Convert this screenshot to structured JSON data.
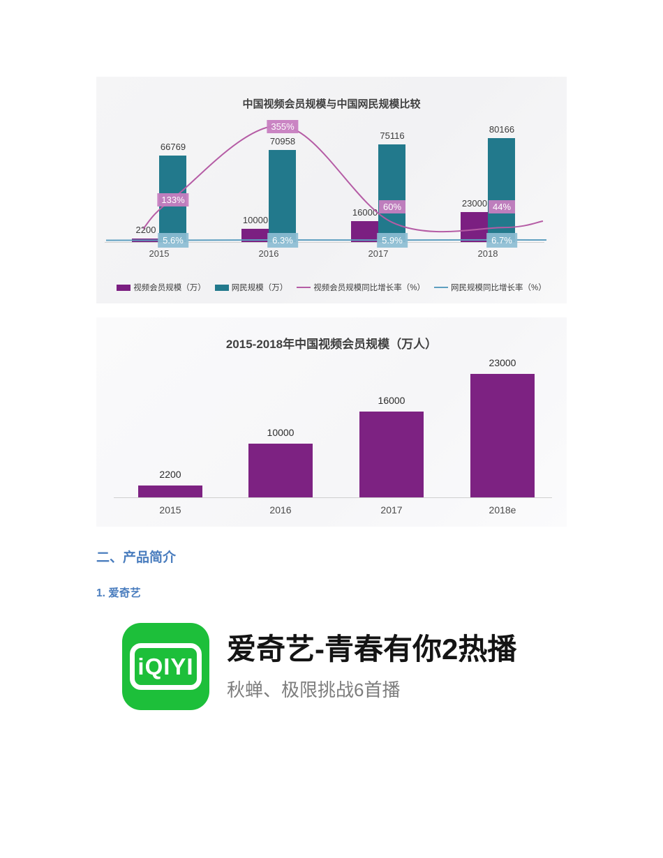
{
  "section": {
    "heading": "二、产品简介",
    "subheading": "1. 爱奇艺"
  },
  "product": {
    "logo_text": "iQIYI",
    "logo_color": "#1dbf3a",
    "title": "爱奇艺-青春有你2热播",
    "subtitle": "秋蝉、极限挑战6首播"
  },
  "chart_data": [
    {
      "type": "bar",
      "title": "中国视频会员规模与中国网民规模比较",
      "categories": [
        "2015",
        "2016",
        "2017",
        "2018"
      ],
      "series": [
        {
          "name": "视频会员规模（万）",
          "kind": "bar",
          "color": "#7b1f81",
          "values": [
            2200,
            10000,
            16000,
            23000
          ]
        },
        {
          "name": "网民规模（万）",
          "kind": "bar",
          "color": "#22798c",
          "values": [
            66769,
            70958,
            75116,
            80166
          ]
        },
        {
          "name": "视频会员规模同比增长率（%）",
          "kind": "line",
          "color": "#b55ca5",
          "values": [
            133,
            355,
            60,
            44
          ],
          "labels": [
            "133%",
            "355%",
            "60%",
            "44%"
          ],
          "label_bg": "rgba(199,126,192,0.95)"
        },
        {
          "name": "网民规模同比增长率（%）",
          "kind": "line",
          "color": "#5e9fc0",
          "values": [
            5.6,
            6.3,
            5.9,
            6.7
          ],
          "labels": [
            "5.6%",
            "6.3%",
            "5.9%",
            "6.7%"
          ],
          "label_bg": "rgba(140,189,210,0.92)"
        }
      ],
      "legend_position": "bottom",
      "grid": false,
      "ylim": [
        0,
        86000
      ],
      "y2lim_pct": [
        0,
        500
      ]
    },
    {
      "type": "bar",
      "title": "2015-2018年中国视频会员规模（万人）",
      "categories": [
        "2015",
        "2016",
        "2017",
        "2018e"
      ],
      "values": [
        2200,
        10000,
        16000,
        23000
      ],
      "bar_color": "#7d2282",
      "grid": false,
      "ylim": [
        0,
        25000
      ],
      "xlabel": "",
      "ylabel": ""
    }
  ]
}
